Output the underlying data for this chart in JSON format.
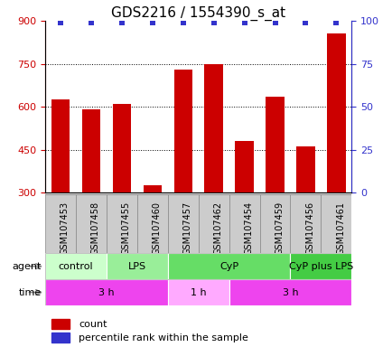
{
  "title": "GDS2216 / 1554390_s_at",
  "samples": [
    "GSM107453",
    "GSM107458",
    "GSM107455",
    "GSM107460",
    "GSM107457",
    "GSM107462",
    "GSM107454",
    "GSM107459",
    "GSM107456",
    "GSM107461"
  ],
  "counts": [
    625,
    590,
    610,
    325,
    730,
    750,
    480,
    635,
    460,
    855
  ],
  "percentile_ranks": [
    99,
    99,
    99,
    99,
    99,
    99,
    99,
    99,
    99,
    99
  ],
  "bar_color": "#cc0000",
  "dot_color": "#3333cc",
  "ylim_left": [
    300,
    900
  ],
  "yticks_left": [
    300,
    450,
    600,
    750,
    900
  ],
  "ylim_right": [
    0,
    100
  ],
  "yticks_right": [
    0,
    25,
    50,
    75,
    100
  ],
  "agent_groups": [
    {
      "label": "control",
      "start": 0,
      "end": 2,
      "color": "#ccffcc"
    },
    {
      "label": "LPS",
      "start": 2,
      "end": 4,
      "color": "#99ee99"
    },
    {
      "label": "CyP",
      "start": 4,
      "end": 8,
      "color": "#66dd66"
    },
    {
      "label": "CyP plus LPS",
      "start": 8,
      "end": 10,
      "color": "#44cc44"
    }
  ],
  "time_groups": [
    {
      "label": "3 h",
      "start": 0,
      "end": 4,
      "color": "#ee44ee"
    },
    {
      "label": "1 h",
      "start": 4,
      "end": 6,
      "color": "#ffaaff"
    },
    {
      "label": "3 h",
      "start": 6,
      "end": 10,
      "color": "#ee44ee"
    }
  ],
  "legend_count_color": "#cc0000",
  "legend_dot_color": "#3333cc",
  "left_axis_color": "#cc0000",
  "right_axis_color": "#3333cc",
  "grid_color": "#000000",
  "title_fontsize": 11,
  "tick_fontsize": 8,
  "sample_label_fontsize": 7,
  "group_label_fontsize": 8,
  "legend_fontsize": 8,
  "sample_bg_color": "#cccccc",
  "sample_border_color": "#888888"
}
